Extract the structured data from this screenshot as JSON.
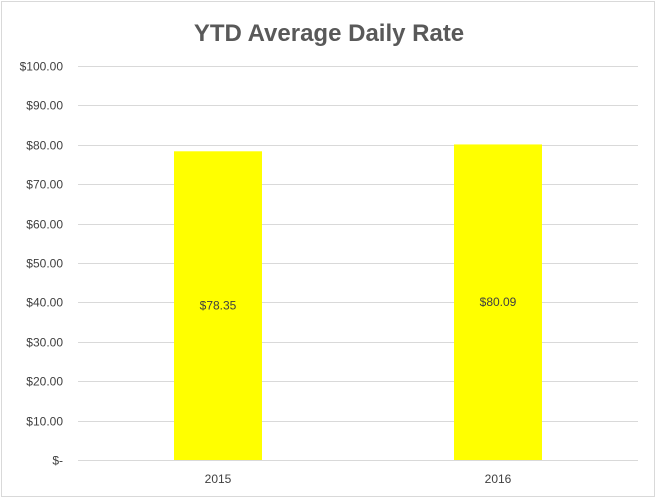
{
  "chart_data": {
    "type": "bar",
    "title": "YTD Average Daily Rate",
    "categories": [
      "2015",
      "2016"
    ],
    "values": [
      78.35,
      80.09
    ],
    "data_labels": [
      "$78.35",
      "$80.09"
    ],
    "ylim": [
      0,
      100
    ],
    "y_ticks": [
      0,
      10,
      20,
      30,
      40,
      50,
      60,
      70,
      80,
      90,
      100
    ],
    "y_tick_labels": [
      "$-",
      "$10.00",
      "$20.00",
      "$30.00",
      "$40.00",
      "$50.00",
      "$60.00",
      "$70.00",
      "$80.00",
      "$90.00",
      "$100.00"
    ],
    "grid": true,
    "legend": "none",
    "bar_color": "#FFFF00",
    "gridline_color": "#d9d9d9"
  }
}
